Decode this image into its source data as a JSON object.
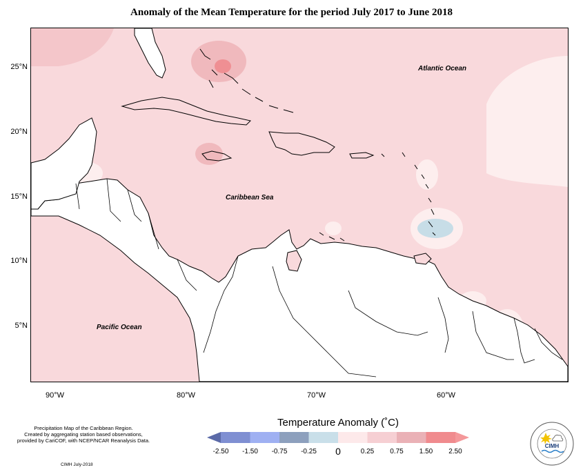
{
  "title": "Anomaly of the Mean Temperature for the period July 2017 to June 2018",
  "ocean_labels": {
    "atlantic": "Atlantic Ocean",
    "caribbean": "Caribbean Sea",
    "pacific": "Pacific Ocean"
  },
  "lat_ticks": [
    "25°N",
    "20°N",
    "15°N",
    "10°N",
    "5°N"
  ],
  "lon_ticks": [
    "90°W",
    "80°W",
    "70°W",
    "60°W"
  ],
  "footer": {
    "line1": "Precipitation Map of the Caribbean Region.",
    "line2": "Created by aggregating station based observations,",
    "line3": "provided by CariCOF, with NCEP/NCAR Reanalysis Data.",
    "credit": "CIMH July-2018"
  },
  "legend": {
    "title": "Temperature Anomaly (˚C)",
    "ticks": [
      "-2.50",
      "-1.50",
      "-0.75",
      "-0.25",
      "0",
      "0.25",
      "0.75",
      "1.50",
      "2.50"
    ],
    "colors": [
      "#5b6aa8",
      "#7f8fd2",
      "#9fb0f2",
      "#8da0bd",
      "#c9dfe9",
      "#fde9ea",
      "#f6cfd3",
      "#eab1b6",
      "#f08b8e",
      "#f4989a"
    ]
  },
  "logo": {
    "text": "CIMH"
  },
  "colors": {
    "anomaly_base": "#f9d9dc",
    "anomaly_warm": "#f0b9bd",
    "anomaly_hot": "#ef8f93",
    "anomaly_neutral": "#fdeeee",
    "anomaly_cool": "#c7dde7",
    "land": "#ffffff"
  }
}
